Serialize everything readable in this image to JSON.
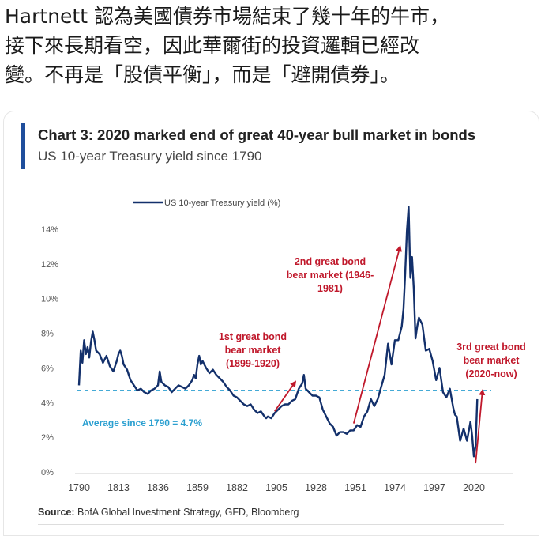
{
  "post": {
    "lines": [
      "Hartnett 認為美國債券市場結束了幾十年的牛市，",
      "接下來長期看空，因此華爾街的投資邏輯已經改",
      "變。不再是「股債平衡」，而是「避開債券」。"
    ]
  },
  "source": {
    "label": "Source:",
    "text": "BofA Global Investment Strategy, GFD, Bloomberg"
  },
  "chart_data": {
    "type": "line",
    "title": "Chart 3: 2020 marked end of great 40-year bull market in bonds",
    "subtitle": "US 10-year Treasury yield since 1790",
    "xlabel": "",
    "ylabel": "",
    "xlim": [
      1790,
      2022
    ],
    "ylim": [
      0,
      16
    ],
    "x_ticks": [
      "1790",
      "1813",
      "1836",
      "1859",
      "1882",
      "1905",
      "1928",
      "1951",
      "1974",
      "1997",
      "2020"
    ],
    "y_ticks": [
      "0%",
      "2%",
      "4%",
      "6%",
      "8%",
      "10%",
      "12%",
      "14%"
    ],
    "line_color": "#13306b",
    "legend": {
      "position": "top-center",
      "label": "US 10-year Treasury yield (%)"
    },
    "series": [
      {
        "name": "US 10-year Treasury yield (%)",
        "x": [
          1790,
          1791,
          1792,
          1793,
          1794,
          1795,
          1796,
          1797,
          1798,
          1799,
          1800,
          1802,
          1804,
          1806,
          1808,
          1810,
          1812,
          1813,
          1814,
          1815,
          1816,
          1818,
          1820,
          1822,
          1824,
          1826,
          1828,
          1830,
          1832,
          1834,
          1836,
          1837,
          1838,
          1840,
          1842,
          1844,
          1846,
          1848,
          1850,
          1852,
          1854,
          1856,
          1857,
          1858,
          1859,
          1860,
          1861,
          1862,
          1864,
          1866,
          1868,
          1870,
          1872,
          1874,
          1876,
          1878,
          1880,
          1882,
          1884,
          1886,
          1888,
          1890,
          1892,
          1894,
          1896,
          1898,
          1899,
          1900,
          1902,
          1904,
          1906,
          1908,
          1910,
          1912,
          1914,
          1916,
          1918,
          1920,
          1921,
          1922,
          1924,
          1926,
          1928,
          1930,
          1932,
          1934,
          1936,
          1938,
          1940,
          1942,
          1944,
          1946,
          1948,
          1950,
          1952,
          1954,
          1956,
          1958,
          1960,
          1962,
          1964,
          1966,
          1968,
          1970,
          1972,
          1974,
          1976,
          1978,
          1979,
          1980,
          1981,
          1982,
          1983,
          1984,
          1985,
          1986,
          1987,
          1988,
          1990,
          1992,
          1994,
          1996,
          1998,
          2000,
          2002,
          2004,
          2006,
          2008,
          2009,
          2010,
          2012,
          2014,
          2016,
          2018,
          2019,
          2020,
          2021,
          2022
        ],
        "values": [
          5.0,
          7.0,
          6.3,
          7.6,
          6.8,
          7.2,
          6.6,
          7.5,
          8.1,
          7.6,
          7.0,
          6.8,
          6.3,
          6.7,
          6.1,
          5.8,
          6.4,
          6.8,
          7.0,
          6.7,
          6.2,
          5.9,
          5.3,
          5.0,
          4.7,
          4.8,
          4.6,
          4.5,
          4.7,
          4.8,
          5.0,
          5.8,
          5.2,
          5.0,
          4.9,
          4.6,
          4.8,
          5.0,
          4.9,
          4.8,
          5.0,
          5.3,
          5.6,
          5.4,
          6.2,
          6.7,
          6.2,
          6.4,
          6.0,
          5.7,
          5.9,
          5.6,
          5.4,
          5.2,
          4.9,
          4.7,
          4.4,
          4.3,
          4.1,
          3.9,
          3.8,
          3.9,
          3.6,
          3.4,
          3.5,
          3.2,
          3.1,
          3.2,
          3.1,
          3.4,
          3.6,
          3.8,
          3.9,
          3.9,
          4.1,
          4.2,
          4.8,
          5.1,
          5.6,
          4.8,
          4.6,
          4.4,
          4.4,
          4.3,
          3.6,
          3.2,
          2.8,
          2.6,
          2.1,
          2.3,
          2.3,
          2.2,
          2.4,
          2.4,
          2.7,
          2.6,
          3.2,
          3.5,
          4.2,
          3.8,
          4.2,
          4.9,
          5.6,
          7.4,
          6.2,
          7.6,
          7.6,
          8.4,
          9.4,
          11.4,
          13.9,
          15.3,
          11.2,
          12.4,
          10.6,
          7.7,
          8.4,
          8.9,
          8.5,
          7.0,
          7.1,
          6.4,
          5.3,
          6.0,
          4.6,
          4.3,
          4.8,
          3.7,
          3.3,
          3.2,
          1.8,
          2.5,
          1.8,
          2.9,
          2.1,
          0.9,
          1.5,
          4.2
        ]
      }
    ],
    "average": {
      "value": 4.7,
      "label": "Average since 1790 = 4.7%"
    },
    "annotations": [
      {
        "lines": [
          "1st great bond",
          "bear market",
          "(1899-1920)"
        ],
        "color": "#c0182b"
      },
      {
        "lines": [
          "2nd great bond",
          "bear market (1946-",
          "1981)"
        ],
        "color": "#c0182b"
      },
      {
        "lines": [
          "3rd great bond",
          "bear market",
          "(2020-now)"
        ],
        "color": "#c0182b"
      }
    ],
    "arrows": [
      {
        "from": [
          1904,
          3.5
        ],
        "to": [
          1916,
          5.2
        ]
      },
      {
        "from": [
          1950,
          2.8
        ],
        "to": [
          1977,
          13.0
        ]
      },
      {
        "from": [
          2021,
          0.5
        ],
        "to": [
          2025,
          4.7
        ]
      }
    ]
  }
}
